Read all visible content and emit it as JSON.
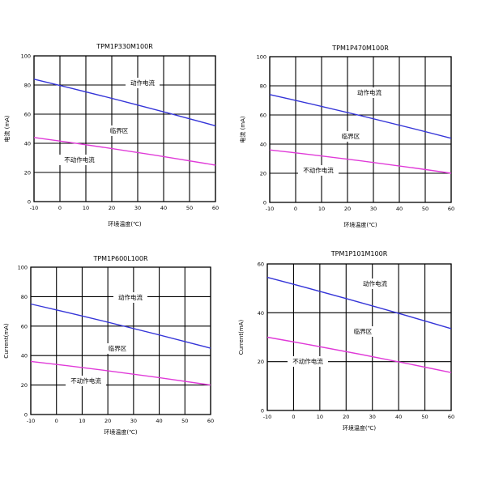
{
  "chart_data": [
    {
      "type": "line",
      "title": "TPM1P330M100R",
      "xlabel": "环境温度(℃)",
      "ylabel": "电流 (mA)",
      "x_ticks": [
        "-10",
        "0",
        "10",
        "20",
        "30",
        "40",
        "50",
        "60"
      ],
      "y_ticks": [
        "0",
        "20",
        "40",
        "60",
        "80",
        "100"
      ],
      "xlim": [
        -10,
        60
      ],
      "ylim": [
        0,
        100
      ],
      "regions": [
        "动作电流",
        "临界区",
        "不动作电流"
      ],
      "series": [
        {
          "name": "动作电流",
          "color": "#3535d8",
          "x": [
            -10,
            60
          ],
          "y": [
            84,
            52
          ]
        },
        {
          "name": "不动作电流",
          "color": "#e03ad8",
          "x": [
            -10,
            60
          ],
          "y": [
            44,
            25
          ]
        }
      ]
    },
    {
      "type": "line",
      "title": "TPM1P470M100R",
      "xlabel": "环境温度(℃)",
      "ylabel": "电流 (mA)",
      "x_ticks": [
        "-10",
        "0",
        "10",
        "20",
        "30",
        "40",
        "50",
        "60"
      ],
      "y_ticks": [
        "0",
        "20",
        "40",
        "60",
        "80",
        "100"
      ],
      "xlim": [
        -10,
        60
      ],
      "ylim": [
        0,
        100
      ],
      "regions": [
        "动作电流",
        "临界区",
        "不动作电流"
      ],
      "series": [
        {
          "name": "动作电流",
          "color": "#3535d8",
          "x": [
            -10,
            60
          ],
          "y": [
            74,
            44
          ]
        },
        {
          "name": "不动作电流",
          "color": "#e03ad8",
          "x": [
            -10,
            60
          ],
          "y": [
            36,
            20
          ]
        }
      ]
    },
    {
      "type": "line",
      "title": "TPM1P600L100R",
      "xlabel": "环境温度(℃)",
      "ylabel": "Current(mA)",
      "x_ticks": [
        "-10",
        "0",
        "10",
        "20",
        "30",
        "40",
        "50",
        "60"
      ],
      "y_ticks": [
        "0",
        "20",
        "40",
        "60",
        "80",
        "100"
      ],
      "xlim": [
        -10,
        60
      ],
      "ylim": [
        0,
        100
      ],
      "regions": [
        "动作电流",
        "临界区",
        "不动作电流"
      ],
      "series": [
        {
          "name": "动作电流",
          "color": "#3535d8",
          "x": [
            -10,
            60
          ],
          "y": [
            75,
            45
          ]
        },
        {
          "name": "不动作电流",
          "color": "#e03ad8",
          "x": [
            -10,
            60
          ],
          "y": [
            36,
            20
          ]
        }
      ]
    },
    {
      "type": "line",
      "title": "TPM1P101M100R",
      "xlabel": "环境温度(℃)",
      "ylabel": "Current(mA)",
      "x_ticks": [
        "-10",
        "0",
        "10",
        "20",
        "30",
        "40",
        "50",
        "60"
      ],
      "y_ticks": [
        "0",
        "20",
        "40",
        "60"
      ],
      "xlim": [
        -10,
        60
      ],
      "ylim": [
        0,
        60
      ],
      "regions": [
        "动作电流",
        "临界区",
        "不动作电流"
      ],
      "series": [
        {
          "name": "动作电流",
          "color": "#3535d8",
          "x": [
            -10,
            60
          ],
          "y": [
            54.5,
            33.5
          ]
        },
        {
          "name": "不动作电流",
          "color": "#e03ad8",
          "x": [
            -10,
            60
          ],
          "y": [
            30,
            15.5
          ]
        }
      ]
    }
  ]
}
